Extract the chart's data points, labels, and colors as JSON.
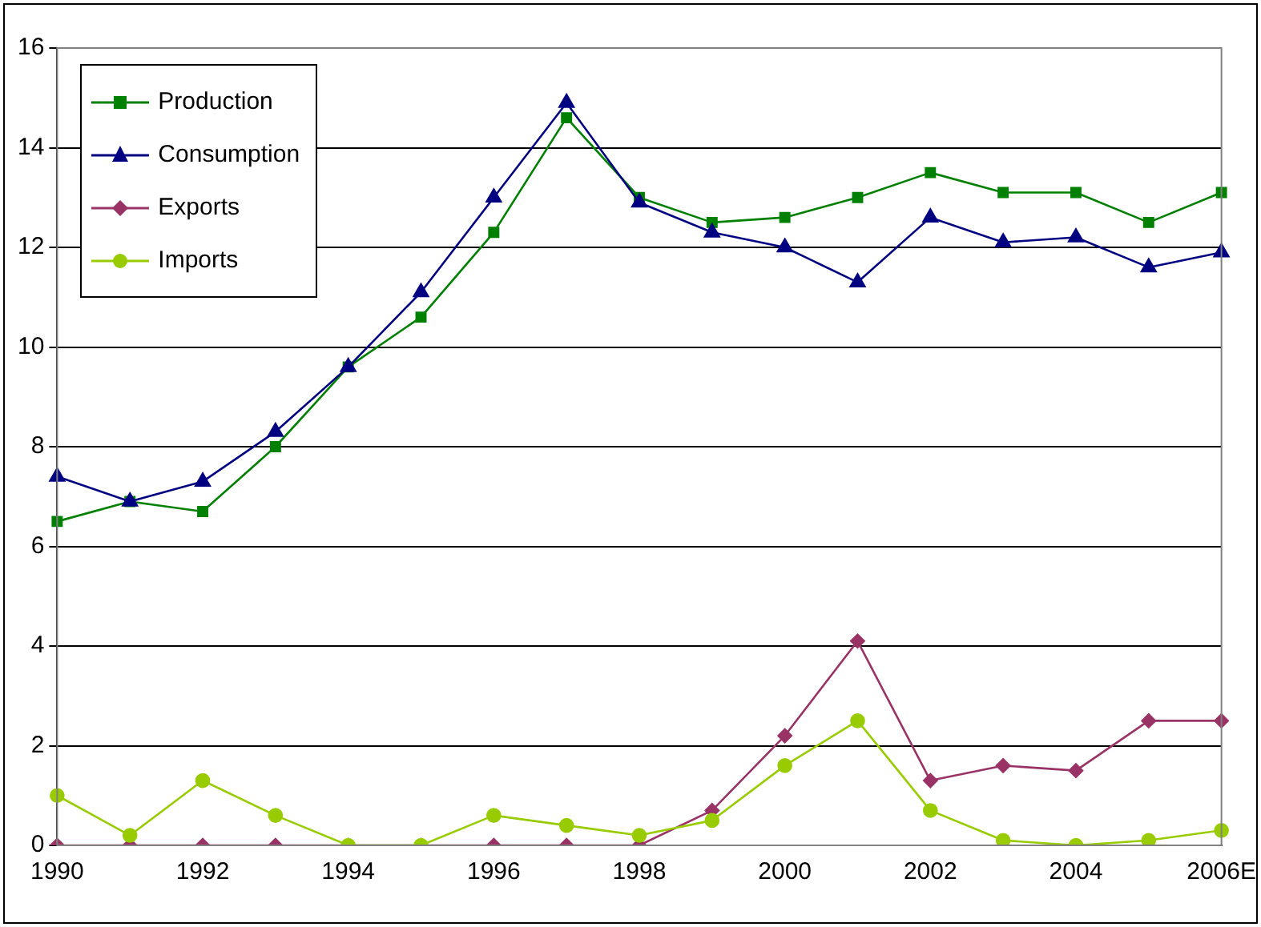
{
  "chart_data": {
    "type": "line",
    "categories": [
      "1990",
      null,
      "1992",
      null,
      "1994",
      null,
      "1996",
      null,
      "1998",
      null,
      "2000",
      null,
      "2002",
      null,
      "2004",
      null,
      "2006E"
    ],
    "series": [
      {
        "name": "Production",
        "color": "#008000",
        "marker": "square",
        "values": [
          6.5,
          6.9,
          6.7,
          8.0,
          9.6,
          10.6,
          12.3,
          14.6,
          13.0,
          12.5,
          12.6,
          13.0,
          13.5,
          13.1,
          13.1,
          12.5,
          13.1
        ]
      },
      {
        "name": "Consumption",
        "color": "#000080",
        "marker": "triangle",
        "values": [
          7.4,
          6.9,
          7.3,
          8.3,
          9.6,
          11.1,
          13.0,
          14.9,
          12.9,
          12.3,
          12.0,
          11.3,
          12.6,
          12.1,
          12.2,
          11.6,
          11.9
        ]
      },
      {
        "name": "Exports",
        "color": "#993366",
        "marker": "diamond",
        "values": [
          0,
          0,
          0,
          0,
          0,
          0,
          0,
          0,
          0,
          0.7,
          2.2,
          4.1,
          1.3,
          1.6,
          1.5,
          2.5,
          2.5
        ]
      },
      {
        "name": "Imports",
        "color": "#99cc00",
        "marker": "circle",
        "values": [
          1.0,
          0.2,
          1.3,
          0.6,
          0,
          0,
          0.6,
          0.4,
          0.2,
          0.5,
          1.6,
          2.5,
          0.7,
          0.1,
          0,
          0.1,
          0.3
        ]
      }
    ],
    "ylim": [
      0,
      16
    ],
    "yticks": [
      0,
      2,
      4,
      6,
      8,
      10,
      12,
      14,
      16
    ],
    "grid": "y",
    "legend": "top left",
    "line_style": "solid"
  }
}
